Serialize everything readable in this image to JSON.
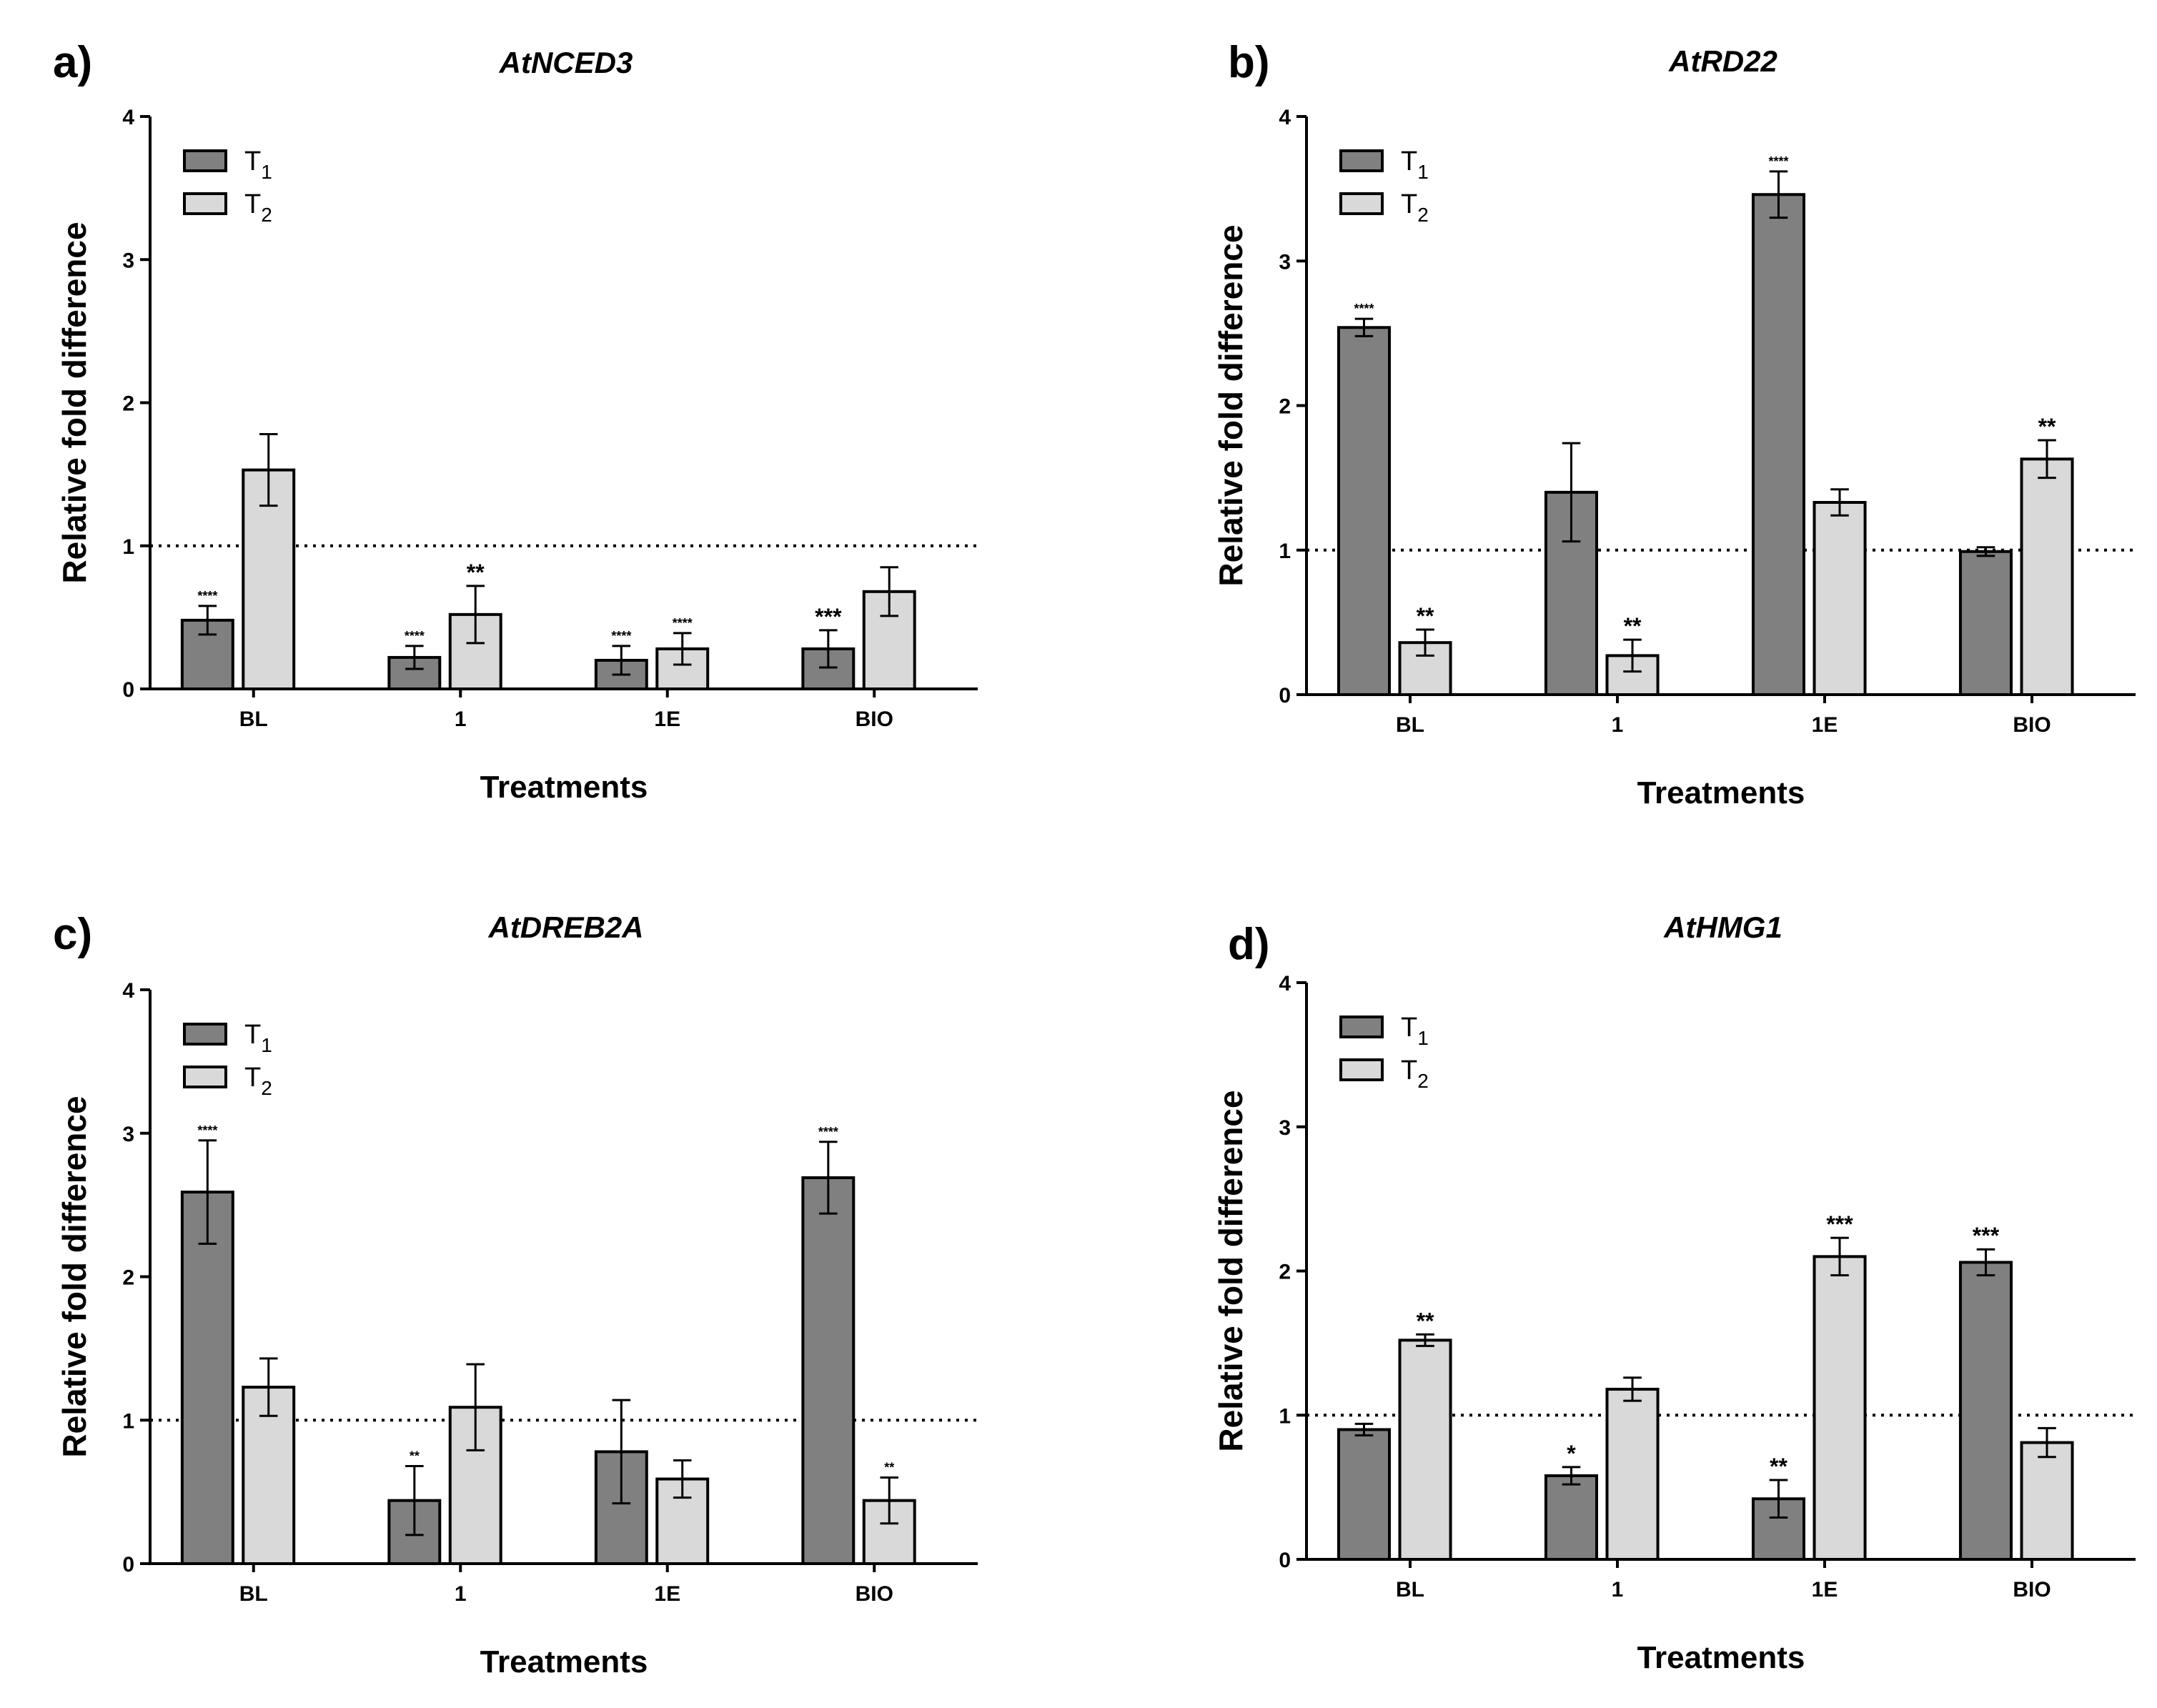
{
  "chart_data": [
    {
      "type": "bar",
      "panel": "a)",
      "title": "AtNCED3",
      "xlabel": "Treatments",
      "ylabel": "Relative fold difference",
      "ylim": [
        0,
        4
      ],
      "yticks": [
        "0",
        "1",
        "2",
        "3",
        "4"
      ],
      "reference_line": 1,
      "categories": [
        "BL",
        "1",
        "1E",
        "BIO"
      ],
      "legend": {
        "placement": "top-left",
        "series_labels": [
          {
            "base": "T",
            "sub": "1"
          },
          {
            "base": "T",
            "sub": "2"
          }
        ]
      },
      "colors": {
        "T1": "#808080",
        "T2": "#d9d9d9"
      },
      "series": [
        {
          "name": "T1",
          "values": [
            0.48,
            0.22,
            0.2,
            0.28
          ],
          "errors": [
            0.1,
            0.08,
            0.1,
            0.13
          ],
          "sig": [
            "****",
            "****",
            "****",
            "***"
          ]
        },
        {
          "name": "T2",
          "values": [
            1.53,
            0.52,
            0.28,
            0.68
          ],
          "errors": [
            0.25,
            0.2,
            0.11,
            0.17
          ],
          "sig": [
            "",
            "**",
            "****",
            ""
          ]
        }
      ]
    },
    {
      "type": "bar",
      "panel": "b)",
      "title": "AtRD22",
      "xlabel": "Treatments",
      "ylabel": "Relative fold difference",
      "ylim": [
        0,
        4
      ],
      "yticks": [
        "0",
        "1",
        "2",
        "3",
        "4"
      ],
      "reference_line": 1,
      "categories": [
        "BL",
        "1",
        "1E",
        "BIO"
      ],
      "legend": {
        "placement": "top-left",
        "series_labels": [
          {
            "base": "T",
            "sub": "1"
          },
          {
            "base": "T",
            "sub": "2"
          }
        ]
      },
      "colors": {
        "T1": "#808080",
        "T2": "#d9d9d9"
      },
      "series": [
        {
          "name": "T1",
          "values": [
            2.54,
            1.4,
            3.46,
            0.99
          ],
          "errors": [
            0.06,
            0.34,
            0.16,
            0.03
          ],
          "sig": [
            "****",
            "",
            "****",
            ""
          ]
        },
        {
          "name": "T2",
          "values": [
            0.36,
            0.27,
            1.33,
            1.63
          ],
          "errors": [
            0.09,
            0.11,
            0.09,
            0.13
          ],
          "sig": [
            "**",
            "**",
            "",
            "**"
          ]
        }
      ]
    },
    {
      "type": "bar",
      "panel": "c)",
      "title": "AtDREB2A",
      "xlabel": "Treatments",
      "ylabel": "Relative fold difference",
      "ylim": [
        0,
        4
      ],
      "yticks": [
        "0",
        "1",
        "2",
        "3",
        "4"
      ],
      "reference_line": 1,
      "categories": [
        "BL",
        "1",
        "1E",
        "BIO"
      ],
      "legend": {
        "placement": "top-left",
        "series_labels": [
          {
            "base": "T",
            "sub": "1"
          },
          {
            "base": "T",
            "sub": "2"
          }
        ]
      },
      "colors": {
        "T1": "#808080",
        "T2": "#d9d9d9"
      },
      "series": [
        {
          "name": "T1",
          "values": [
            2.59,
            0.44,
            0.78,
            2.69
          ],
          "errors": [
            0.36,
            0.24,
            0.36,
            0.25
          ],
          "sig": [
            "****",
            "**",
            "",
            "****"
          ]
        },
        {
          "name": "T2",
          "values": [
            1.23,
            1.09,
            0.59,
            0.44
          ],
          "errors": [
            0.2,
            0.3,
            0.13,
            0.16
          ],
          "sig": [
            "",
            "",
            "",
            "**"
          ]
        }
      ]
    },
    {
      "type": "bar",
      "panel": "d)",
      "title": "AtHMG1",
      "xlabel": "Treatments",
      "ylabel": "Relative fold difference",
      "ylim": [
        0,
        4
      ],
      "yticks": [
        "0",
        "1",
        "2",
        "3",
        "4"
      ],
      "reference_line": 1,
      "categories": [
        "BL",
        "1",
        "1E",
        "BIO"
      ],
      "legend": {
        "placement": "top-left",
        "series_labels": [
          {
            "base": "T",
            "sub": "1"
          },
          {
            "base": "T",
            "sub": "2"
          }
        ]
      },
      "colors": {
        "T1": "#808080",
        "T2": "#d9d9d9"
      },
      "series": [
        {
          "name": "T1",
          "values": [
            0.9,
            0.58,
            0.42,
            2.06
          ],
          "errors": [
            0.04,
            0.06,
            0.13,
            0.09
          ],
          "sig": [
            "",
            "*",
            "**",
            "***"
          ]
        },
        {
          "name": "T2",
          "values": [
            1.52,
            1.18,
            2.1,
            0.81
          ],
          "errors": [
            0.04,
            0.08,
            0.13,
            0.1
          ],
          "sig": [
            "**",
            "",
            "***",
            ""
          ]
        }
      ]
    }
  ]
}
